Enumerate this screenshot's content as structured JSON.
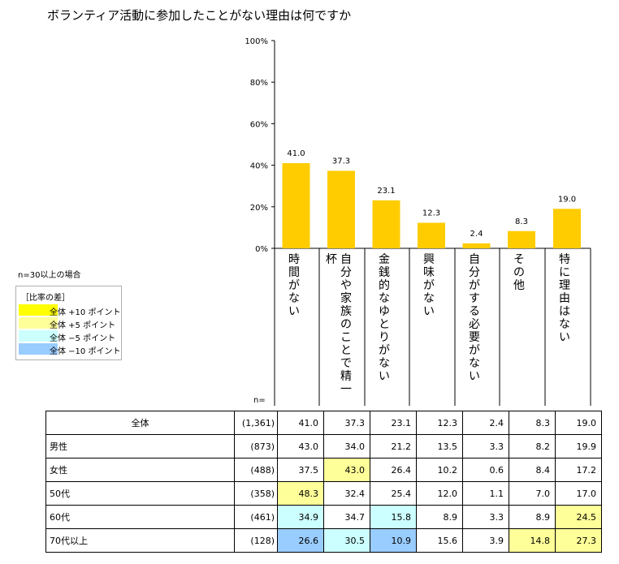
{
  "title": "ボランティア活動に参加したことがない理由は何ですか",
  "note": "n=30以上の場合",
  "legend": {
    "title": "［比率の差］",
    "items": [
      {
        "label": "全体 +10 ポイント",
        "color": "#ffff00"
      },
      {
        "label": "全体 +5 ポイント",
        "color": "#ffff99"
      },
      {
        "label": "全体 −5 ポイント",
        "color": "#ccffff"
      },
      {
        "label": "全体 −10 ポイント",
        "color": "#99ccff"
      }
    ]
  },
  "n_label": "n=",
  "chart_data": {
    "type": "bar",
    "categories": [
      "時間がない",
      "自分や家族のことで精一杯",
      "金銭的なゆとりがない",
      "興味がない",
      "自分がする必要がない",
      "その他",
      "特に理由はない"
    ],
    "values": [
      41.0,
      37.3,
      23.1,
      12.3,
      2.4,
      8.3,
      19.0
    ],
    "value_labels": [
      "41.0",
      "37.3",
      "23.1",
      "12.3",
      "2.4",
      "8.3",
      "19.0"
    ],
    "ylim": [
      0,
      100
    ],
    "yticks": [
      "0%",
      "20%",
      "40%",
      "60%",
      "80%",
      "100%"
    ],
    "bar_color": "#ffcc00",
    "grid": false
  },
  "table": {
    "rows": [
      {
        "label": "全体",
        "n": "(1,361)",
        "values": [
          "41.0",
          "37.3",
          "23.1",
          "12.3",
          "2.4",
          "8.3",
          "19.0"
        ],
        "colors": [
          "",
          "",
          "",
          "",
          "",
          "",
          ""
        ]
      },
      {
        "label": "男性",
        "n": "(873)",
        "values": [
          "43.0",
          "34.0",
          "21.2",
          "13.5",
          "3.3",
          "8.2",
          "19.9"
        ],
        "colors": [
          "",
          "",
          "",
          "",
          "",
          "",
          ""
        ]
      },
      {
        "label": "女性",
        "n": "(488)",
        "values": [
          "37.5",
          "43.0",
          "26.4",
          "10.2",
          "0.6",
          "8.4",
          "17.2"
        ],
        "colors": [
          "",
          "#ffff99",
          "",
          "",
          "",
          "",
          ""
        ]
      },
      {
        "label": "50代",
        "n": "(358)",
        "values": [
          "48.3",
          "32.4",
          "25.4",
          "12.0",
          "1.1",
          "7.0",
          "17.0"
        ],
        "colors": [
          "#ffff99",
          "",
          "",
          "",
          "",
          "",
          ""
        ]
      },
      {
        "label": "60代",
        "n": "(461)",
        "values": [
          "34.9",
          "34.7",
          "15.8",
          "8.9",
          "3.3",
          "8.9",
          "24.5"
        ],
        "colors": [
          "#ccffff",
          "",
          "#ccffff",
          "",
          "",
          "",
          "#ffff99"
        ]
      },
      {
        "label": "70代以上",
        "n": "(128)",
        "values": [
          "26.6",
          "30.5",
          "10.9",
          "15.6",
          "3.9",
          "14.8",
          "27.3"
        ],
        "colors": [
          "#99ccff",
          "#ccffff",
          "#99ccff",
          "",
          "",
          "#ffff99",
          "#ffff99"
        ]
      }
    ]
  }
}
